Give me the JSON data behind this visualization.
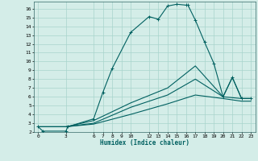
{
  "xlabel": "Humidex (Indice chaleur)",
  "bg_color": "#d4ede8",
  "grid_color": "#a8d4cc",
  "line_color": "#006060",
  "xlim": [
    -0.5,
    23.5
  ],
  "ylim": [
    2,
    16.8
  ],
  "xticks": [
    0,
    3,
    6,
    7,
    8,
    9,
    10,
    12,
    13,
    14,
    15,
    16,
    17,
    18,
    19,
    20,
    21,
    22,
    23
  ],
  "yticks": [
    2,
    3,
    4,
    5,
    6,
    7,
    8,
    9,
    10,
    11,
    12,
    13,
    14,
    15,
    16
  ],
  "line1_x": [
    0,
    0.5,
    3,
    3.2,
    6,
    7,
    8,
    10,
    12,
    13,
    14,
    15,
    16,
    16.2,
    17,
    18,
    19,
    20,
    21,
    22,
    23
  ],
  "line1_y": [
    2.6,
    2.1,
    2.1,
    2.6,
    3.5,
    6.5,
    9.2,
    13.3,
    15.1,
    14.8,
    16.3,
    16.5,
    16.4,
    16.4,
    14.7,
    12.2,
    9.8,
    6.0,
    8.2,
    5.8,
    5.8
  ],
  "line2_x": [
    0,
    3,
    6,
    10,
    14,
    17,
    20,
    21,
    22,
    23
  ],
  "line2_y": [
    2.6,
    2.6,
    3.3,
    5.3,
    7.0,
    9.5,
    6.0,
    8.2,
    5.8,
    5.8
  ],
  "line3_x": [
    0,
    3,
    6,
    10,
    14,
    17,
    20,
    22,
    23
  ],
  "line3_y": [
    2.6,
    2.6,
    3.0,
    4.8,
    6.2,
    8.0,
    6.0,
    5.8,
    5.8
  ],
  "line4_x": [
    0,
    3,
    6,
    10,
    14,
    17,
    20,
    22,
    23
  ],
  "line4_y": [
    2.6,
    2.6,
    2.9,
    4.0,
    5.2,
    6.2,
    5.8,
    5.5,
    5.5
  ]
}
